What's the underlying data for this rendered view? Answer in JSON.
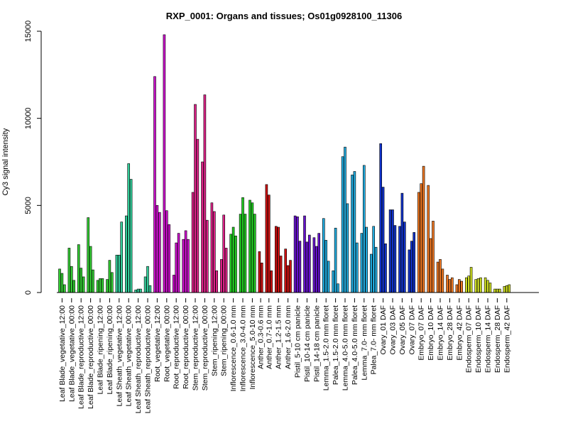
{
  "chart_data": {
    "type": "bar",
    "title": "RXP_0001: Organs and tissues; Os01g0928100_11306",
    "xlabel": "",
    "ylabel": "Cy3 signal intensity",
    "ylim": [
      0,
      15000
    ],
    "yticks": [
      0,
      5000,
      10000,
      15000
    ],
    "grid": false,
    "legend": "none",
    "categories": [
      "Leaf Blade_vegetative_12:00",
      "Leaf Blade_vegetative_00:00",
      "Leaf Blade_reproductive_12:00",
      "Leaf Blade_reproductive_00:00",
      "Leaf Blade_ripening_12:00",
      "Leaf Blade_ripening_00:00",
      "Leaf Sheath_vegetative_12:00",
      "Leaf Sheath_vegetative_00:00",
      "Leaf Sheath_reproductive_12:00",
      "Leaf Sheath_reproductive_00:00",
      "Root_vegetative_12:00",
      "Root_vegetative_00:00",
      "Root_reproductive_12:00",
      "Root_reproductive_00:00",
      "Stem_reproductive_12:00",
      "Stem_reproductive_00:00",
      "Stem_ripening_12:00",
      "Stem_ripening_00:00",
      "Inflorescence_0.6-1.0 mm",
      "Inflorescence_3.0-4.0 mm",
      "Inflorescence_5.0-10 mm",
      "Anther_0.3-0.6 mm",
      "Anther_0.7-1.0 mm",
      "Anther_1.2-1.5 mm",
      "Anther_1.6-2.0 mm",
      "Pistil_5-10 cm panicle",
      "Pistil_10-14 cm panicle",
      "Pistil_14-18 cm panicle",
      "Lemma_1.5-2.0 mm floret",
      "Palea_1.5-2.0 mm floret",
      "Lemma_4.0-5.0 mm floret",
      "Palea_4.0-5.0 mm floret",
      "Lemma_7.0- mm floret",
      "Palea_7.0- mm floret",
      "Ovary_01 DAF",
      "Ovary_03 DAF",
      "Ovary_05 DAF",
      "Ovary_07 DAF",
      "Embryo_07 DAF",
      "Embryo_10 DAF",
      "Embryo_14 DAF",
      "Embryo_28 DAF",
      "Embryo_42 DAF",
      "Endosperm_07 DAF",
      "Endosperm_10 DAF",
      "Endosperm_14 DAF",
      "Endosperm_28 DAF",
      "Endosperm_42 DAF"
    ],
    "groups": [
      {
        "color": "#33cc33",
        "values": [
          1350,
          1100,
          450
        ]
      },
      {
        "color": "#33cc33",
        "values": [
          2550,
          1500,
          700
        ]
      },
      {
        "color": "#33cc33",
        "values": [
          2750,
          1400,
          900
        ]
      },
      {
        "color": "#33cc33",
        "values": [
          4300,
          2650,
          1300
        ]
      },
      {
        "color": "#33cc33",
        "values": [
          700,
          800,
          800
        ]
      },
      {
        "color": "#33cc33",
        "values": [
          750,
          1850,
          1150
        ]
      },
      {
        "color": "#33cc99",
        "values": [
          2150,
          2150,
          4050
        ]
      },
      {
        "color": "#33cc99",
        "values": [
          4400,
          7400,
          6500
        ]
      },
      {
        "color": "#33cc99",
        "values": [
          150,
          200,
          200
        ]
      },
      {
        "color": "#33cc99",
        "values": [
          900,
          1500,
          400
        ]
      },
      {
        "color": "#cc11cc",
        "values": [
          12400,
          5000,
          4600
        ]
      },
      {
        "color": "#cc11cc",
        "values": [
          14800,
          4700,
          3900
        ]
      },
      {
        "color": "#cc11cc",
        "values": [
          1000,
          2850,
          3400
        ]
      },
      {
        "color": "#cc11cc",
        "values": [
          3050,
          3550,
          3050
        ]
      },
      {
        "color": "#dd2288",
        "values": [
          5750,
          10800,
          8800
        ]
      },
      {
        "color": "#dd2288",
        "values": [
          7500,
          11350,
          4150
        ]
      },
      {
        "color": "#dd2288",
        "values": [
          5150,
          4650,
          1250
        ]
      },
      {
        "color": "#dd2288",
        "values": [
          1900,
          4450,
          2550
        ]
      },
      {
        "color": "#22cc22",
        "values": [
          3350,
          3750,
          3250
        ]
      },
      {
        "color": "#22cc22",
        "values": [
          4500,
          5450,
          4500
        ]
      },
      {
        "color": "#22cc22",
        "values": [
          5300,
          5150,
          4500
        ]
      },
      {
        "color": "#cc1111",
        "values": [
          2350,
          1700
        ]
      },
      {
        "color": "#cc1111",
        "values": [
          6200,
          5600,
          1250
        ]
      },
      {
        "color": "#cc1111",
        "values": [
          3800,
          3750,
          2100
        ]
      },
      {
        "color": "#cc1111",
        "values": [
          2500,
          1550,
          1850
        ]
      },
      {
        "color": "#6611cc",
        "values": [
          4400,
          4350,
          2950
        ]
      },
      {
        "color": "#6611cc",
        "values": [
          4400,
          2900,
          3300
        ]
      },
      {
        "color": "#6611cc",
        "values": [
          3150,
          2650,
          3400
        ]
      },
      {
        "color": "#22aadd",
        "values": [
          4250,
          3000,
          1800
        ]
      },
      {
        "color": "#22aadd",
        "values": [
          1250,
          3700,
          500
        ]
      },
      {
        "color": "#22aadd",
        "values": [
          7800,
          8350,
          5100
        ]
      },
      {
        "color": "#22aadd",
        "values": [
          6750,
          6950,
          2850
        ]
      },
      {
        "color": "#22aadd",
        "values": [
          3400,
          7300,
          3750
        ]
      },
      {
        "color": "#22aadd",
        "values": [
          2200,
          3800,
          2600
        ]
      },
      {
        "color": "#1133cc",
        "values": [
          8550,
          6050,
          2800
        ]
      },
      {
        "color": "#1133cc",
        "values": [
          4750,
          4750,
          3850
        ]
      },
      {
        "color": "#1133cc",
        "values": [
          3800,
          5700,
          4050
        ]
      },
      {
        "color": "#1133cc",
        "values": [
          2450,
          2950,
          3450
        ]
      },
      {
        "color": "#ee7722",
        "values": [
          5750,
          6250,
          7250
        ]
      },
      {
        "color": "#ee7722",
        "values": [
          6150,
          3100,
          4100
        ]
      },
      {
        "color": "#ee7722",
        "values": [
          1750,
          1900,
          1350
        ]
      },
      {
        "color": "#ee7722",
        "values": [
          1000,
          750,
          850
        ]
      },
      {
        "color": "#ee7722",
        "values": [
          450,
          750,
          650
        ]
      },
      {
        "color": "#ccdd22",
        "values": [
          850,
          950,
          1450
        ]
      },
      {
        "color": "#ccdd22",
        "values": [
          750,
          800,
          850
        ]
      },
      {
        "color": "#ccdd22",
        "values": [
          850,
          700,
          550
        ]
      },
      {
        "color": "#ccdd22",
        "values": [
          200,
          200,
          200
        ]
      },
      {
        "color": "#ccdd22",
        "values": [
          350,
          400,
          450
        ]
      }
    ]
  }
}
